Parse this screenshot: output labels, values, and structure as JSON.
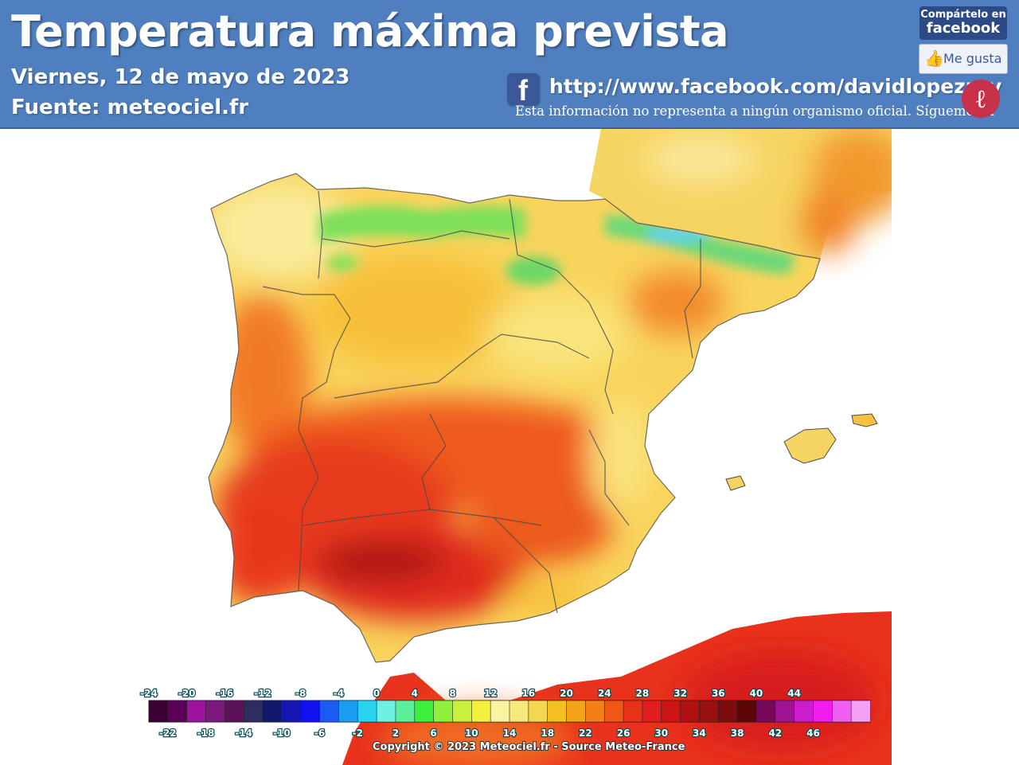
{
  "header": {
    "title": "Temperatura máxima prevista",
    "date": "Viernes, 12 de mayo de 2023",
    "source": "Fuente: meteociel.fr",
    "facebook_url": "http://www.facebook.com/davidlopezrey",
    "disclaimer": "Esta información no representa a ningún organismo oficial. Sígueme en",
    "share_line1": "Compártelo en",
    "share_line2": "facebook",
    "like_label": "Me gusta",
    "logo_icon": "dlr-logo-icon"
  },
  "map": {
    "variable": "Temperatura máxima",
    "copyright": "Copyright © 2023 Meteociel.fr - Source Meteo-France",
    "legend": {
      "top_labels": [
        "-24",
        "-20",
        "-16",
        "-12",
        "-8",
        "-4",
        "0",
        "4",
        "8",
        "12",
        "16",
        "20",
        "24",
        "28",
        "32",
        "36",
        "40",
        "44"
      ],
      "bottom_labels": [
        "-22",
        "-18",
        "-14",
        "-10",
        "-6",
        "-2",
        "2",
        "6",
        "10",
        "14",
        "18",
        "22",
        "26",
        "30",
        "34",
        "38",
        "42",
        "46"
      ],
      "colors": [
        "#3d0034",
        "#5c0058",
        "#9e139e",
        "#7a1a7a",
        "#5b1256",
        "#2d2d62",
        "#12186e",
        "#1616b4",
        "#1010f0",
        "#1a5cf0",
        "#1c9cf0",
        "#2ad4f0",
        "#6ef0e2",
        "#5af09a",
        "#3ef03e",
        "#8ef03c",
        "#c8f03c",
        "#f4f03c",
        "#f8f4a0",
        "#f6e87a",
        "#f4d650",
        "#f4c020",
        "#f4a218",
        "#f47e18",
        "#f05818",
        "#e83218",
        "#e01e1e",
        "#cc1414",
        "#b01010",
        "#981010",
        "#7e0c0c",
        "#5c0606",
        "#76085a",
        "#a01494",
        "#cc1ccc",
        "#f01cf0",
        "#f060f0",
        "#f4a0f4"
      ]
    }
  }
}
